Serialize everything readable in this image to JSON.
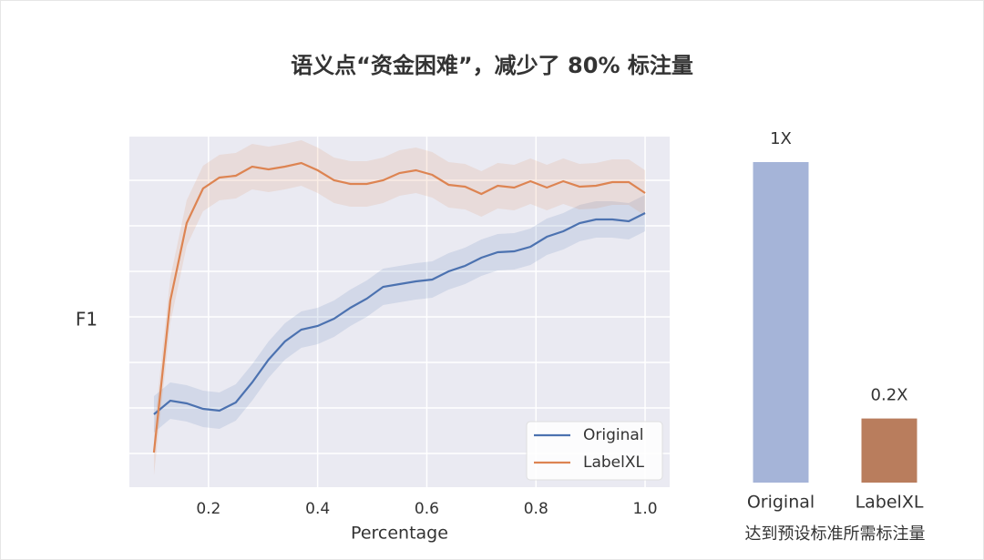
{
  "title": "语义点“资金困难”，减少了 80% 标注量",
  "chart_data": [
    {
      "type": "line",
      "xlabel": "Percentage",
      "ylabel": "F1",
      "x": [
        0.1,
        0.13,
        0.16,
        0.19,
        0.22,
        0.25,
        0.28,
        0.31,
        0.34,
        0.37,
        0.4,
        0.43,
        0.46,
        0.49,
        0.52,
        0.55,
        0.58,
        0.61,
        0.64,
        0.67,
        0.7,
        0.73,
        0.76,
        0.79,
        0.82,
        0.85,
        0.88,
        0.91,
        0.94,
        0.97,
        1.0
      ],
      "series": [
        {
          "name": "Original",
          "color": "#4c72b0",
          "spread": 0.4,
          "values": [
            0.86,
            1.16,
            1.1,
            0.98,
            0.94,
            1.12,
            1.56,
            2.06,
            2.46,
            2.72,
            2.8,
            2.96,
            3.2,
            3.4,
            3.66,
            3.72,
            3.78,
            3.82,
            4.0,
            4.12,
            4.3,
            4.42,
            4.44,
            4.54,
            4.76,
            4.88,
            5.06,
            5.14,
            5.14,
            5.1,
            5.28
          ]
        },
        {
          "name": "LabelXL",
          "color": "#dd8452",
          "spread": 0.5,
          "values": [
            0.02,
            3.36,
            5.06,
            5.82,
            6.06,
            6.1,
            6.3,
            6.24,
            6.3,
            6.38,
            6.22,
            6.0,
            5.92,
            5.92,
            6.0,
            6.16,
            6.22,
            6.12,
            5.9,
            5.86,
            5.7,
            5.88,
            5.84,
            5.98,
            5.84,
            5.98,
            5.86,
            5.88,
            5.96,
            5.96,
            5.72
          ]
        }
      ],
      "xlim": [
        0.055,
        1.045
      ],
      "ylim": [
        -0.74,
        6.96
      ],
      "xticks": [
        0.2,
        0.4,
        0.6,
        0.8,
        {
          "value": 1,
          "label": "1.0"
        }
      ],
      "yticks": [
        0,
        1,
        2,
        3,
        4,
        5,
        6
      ],
      "grid": true,
      "legend": "lower right"
    },
    {
      "type": "bar",
      "xlabel": "达到预设标准所需标注量",
      "categories": [
        "Original",
        "LabelXL"
      ],
      "values": [
        1,
        0.2
      ],
      "value_labels": [
        "1X",
        "0.2X"
      ],
      "colors": [
        "#a5b4d8",
        "#b97d5d"
      ],
      "ylim": [
        0,
        1
      ]
    }
  ]
}
